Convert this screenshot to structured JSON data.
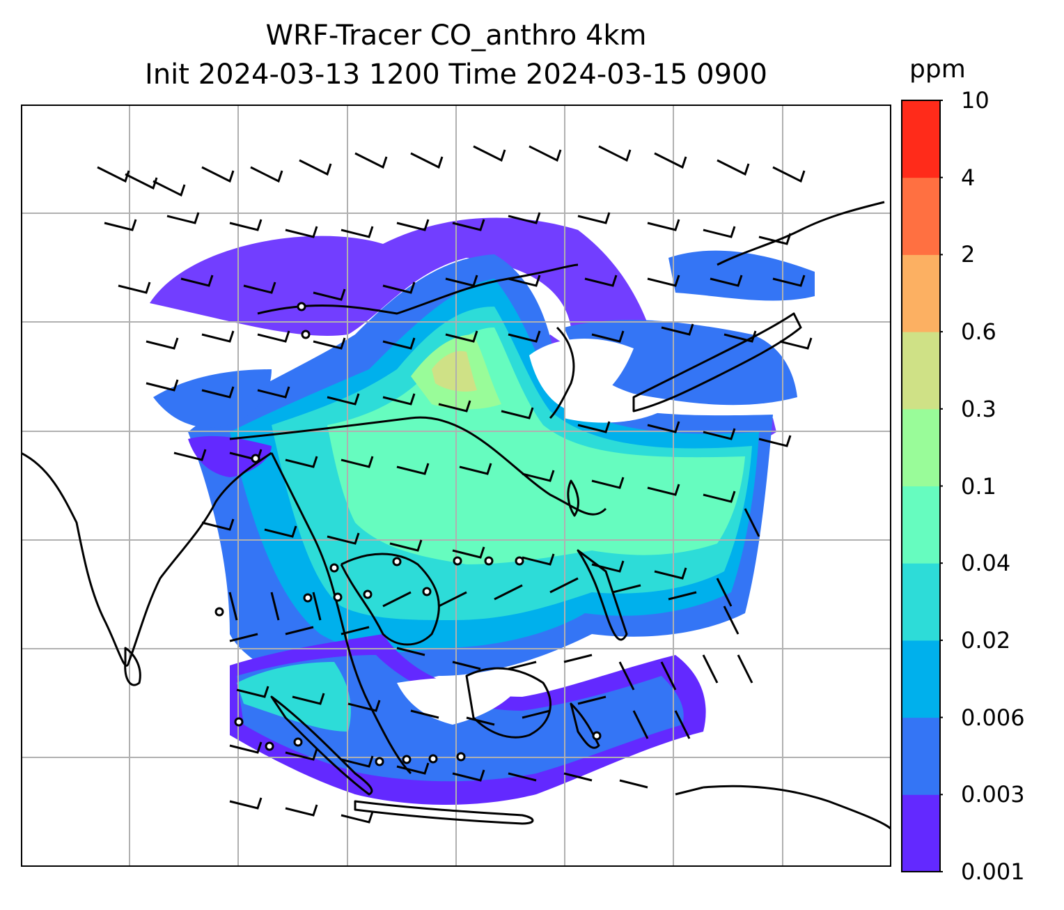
{
  "title": {
    "line1": "WRF-Tracer CO_anthro 4km",
    "line2": "Init 2024-03-13 1200 Time 2024-03-15 0900"
  },
  "colorbar": {
    "unit": "ppm",
    "levels": [
      "0.001",
      "0.003",
      "0.006",
      "0.02",
      "0.04",
      "0.1",
      "0.3",
      "0.6",
      "2",
      "4",
      "10"
    ],
    "colors": [
      "#6329ff",
      "#3475f5",
      "#00b0ec",
      "#2ddcd8",
      "#66fcbf",
      "#99fc99",
      "#cfe186",
      "#fcb062",
      "#ff7041",
      "#ff2b1a"
    ]
  },
  "map": {
    "variable": "CO_anthro",
    "model": "WRF-Tracer",
    "resolution": "4km",
    "gridlines": true,
    "gridline_color": "#b0b0b0",
    "coastline_color": "#000000",
    "wind_barbs": true
  }
}
